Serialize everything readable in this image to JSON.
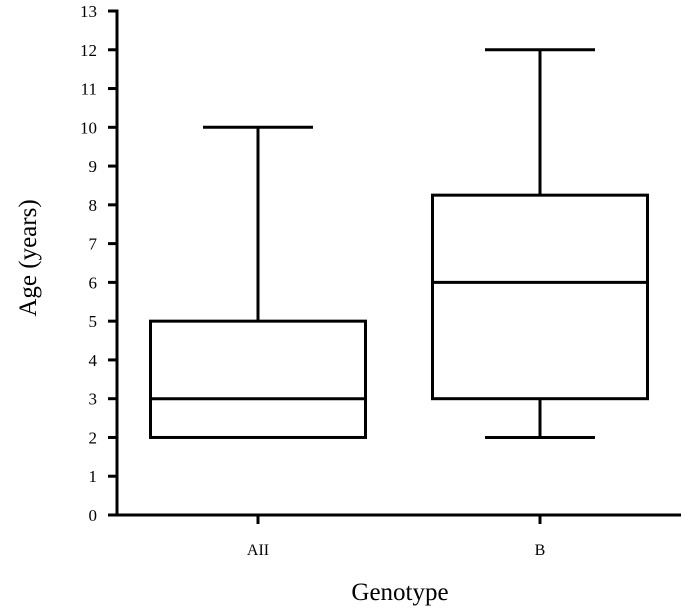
{
  "chart_data": {
    "type": "box",
    "xlabel": "Genotype",
    "ylabel": "Age (years)",
    "ylim": [
      0,
      13
    ],
    "yticks": [
      0,
      1,
      2,
      3,
      4,
      5,
      6,
      7,
      8,
      9,
      10,
      11,
      12,
      13
    ],
    "grid": false,
    "categories": [
      "AII",
      "B"
    ],
    "boxes": [
      {
        "category": "AII",
        "whisker_low": 2,
        "q1": 2,
        "median": 3,
        "q3": 5,
        "whisker_high": 10
      },
      {
        "category": "B",
        "whisker_low": 2,
        "q1": 3,
        "median": 6,
        "q3": 8.25,
        "whisker_high": 12
      }
    ]
  }
}
